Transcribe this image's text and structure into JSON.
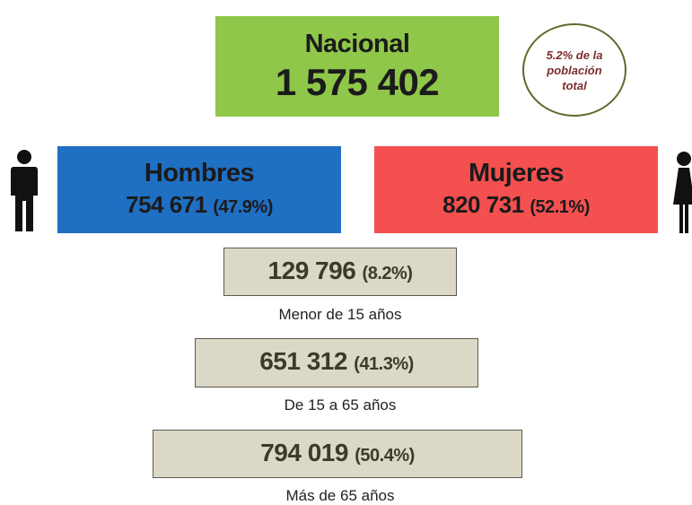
{
  "nacional": {
    "label": "Nacional",
    "value": "1 575 402"
  },
  "note": {
    "lines": [
      "5.2% de la",
      "población",
      "total"
    ]
  },
  "hombres": {
    "label": "Hombres",
    "value": "754 671",
    "percent": "(47.9%)"
  },
  "mujeres": {
    "label": "Mujeres",
    "value": "820 731",
    "percent": "(52.1%)"
  },
  "age_groups": [
    {
      "value": "129 796",
      "percent": "(8.2%)",
      "label": "Menor de 15 años"
    },
    {
      "value": "651 312",
      "percent": "(41.3%)",
      "label": "De 15 a 65 años"
    },
    {
      "value": "794 019",
      "percent": "(50.4%)",
      "label": "Más de 65 años"
    }
  ]
}
